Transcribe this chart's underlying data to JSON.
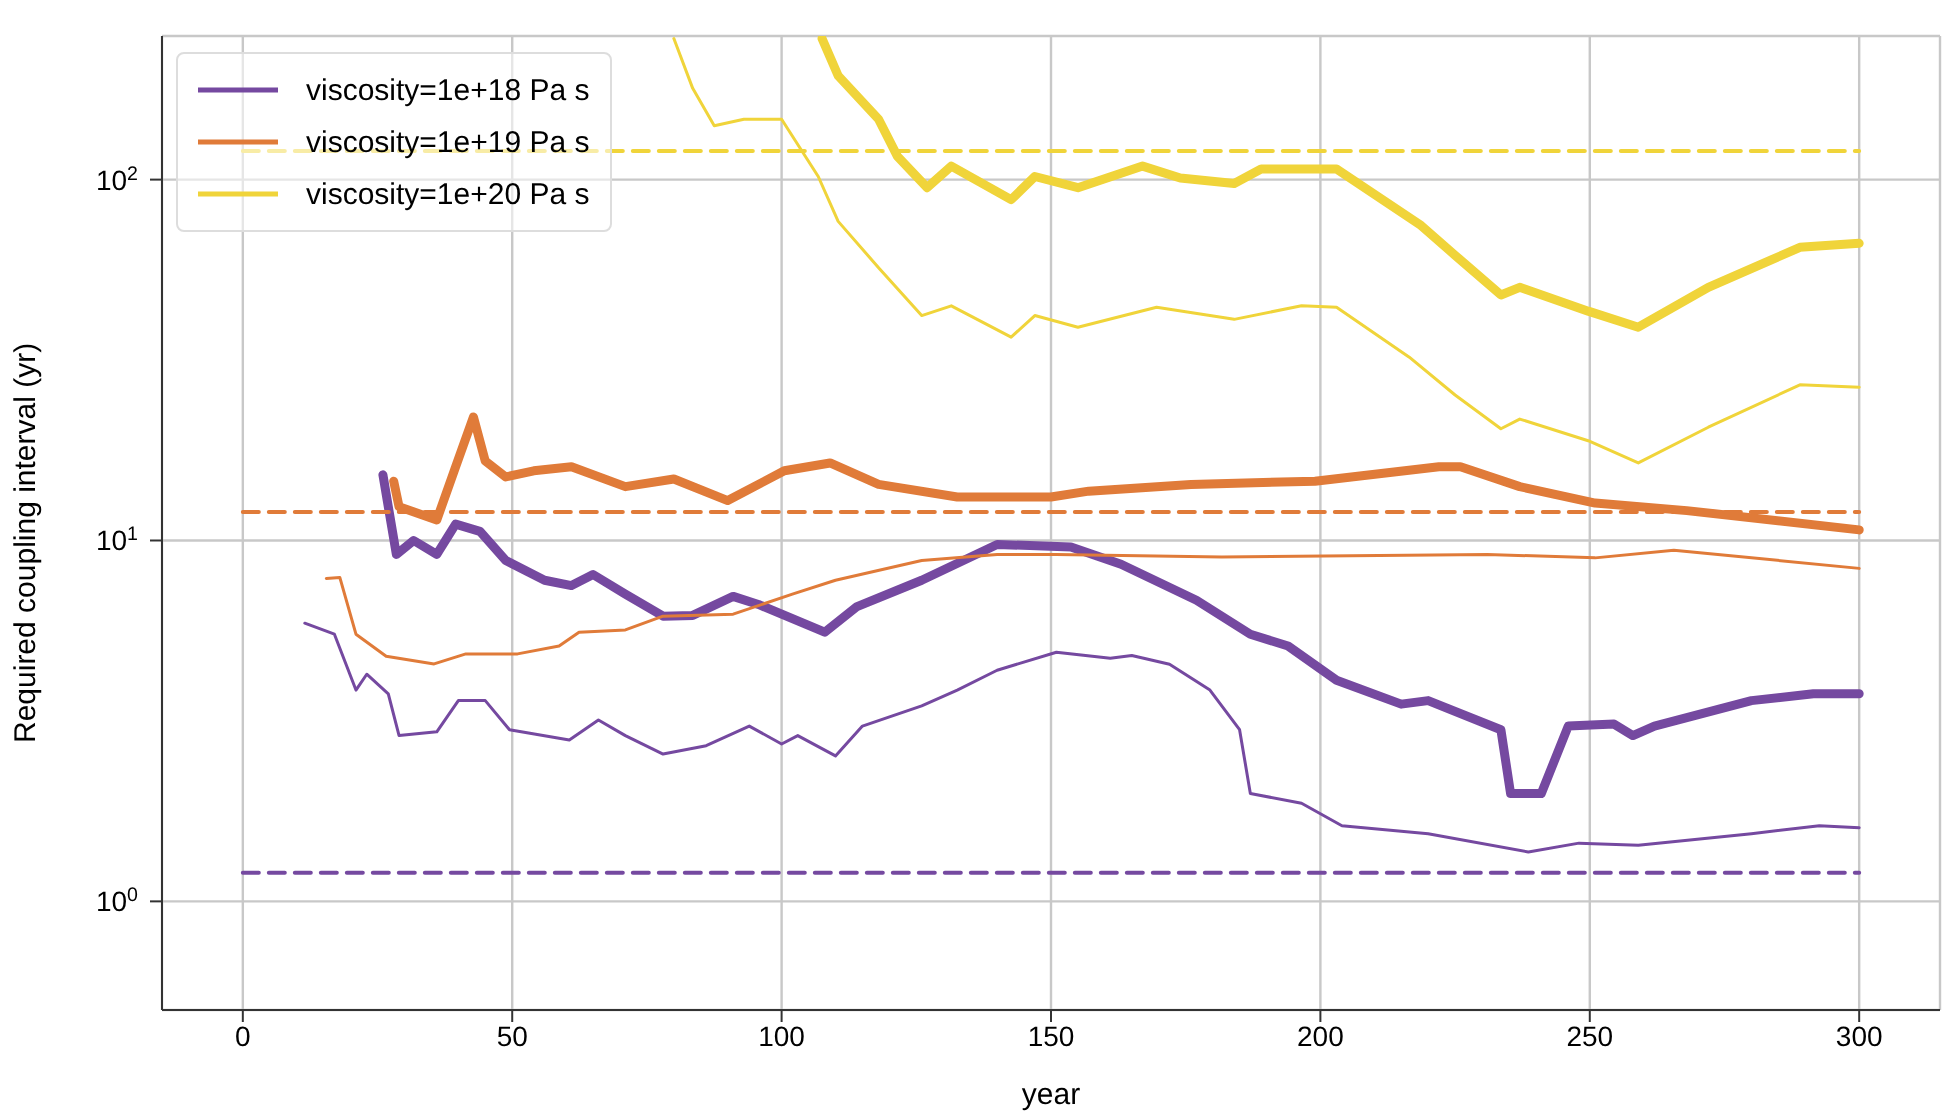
{
  "chart_data": {
    "type": "line",
    "xlabel": "year",
    "ylabel": "Required coupling interval (yr)",
    "log": "y",
    "grid": true,
    "legend": "top left",
    "xlim": [
      -15,
      315
    ],
    "xticks": [
      0,
      50,
      100,
      150,
      200,
      250,
      300
    ],
    "ylim": [
      0.5,
      250
    ],
    "yticks": [
      {
        "value": 1,
        "label": "10$^{0}$"
      },
      {
        "value": 10,
        "label": "10$^{1}$"
      },
      {
        "value": 100,
        "label": "10$^{2}$"
      }
    ],
    "series": [
      {
        "name": "viscosity=1e+18 Pa s",
        "color": "#7549a0",
        "x": [
          11.5,
          17,
          21,
          23,
          27,
          29,
          36,
          40,
          45,
          49.5,
          60.6,
          66,
          71,
          78,
          86,
          94,
          100,
          103,
          110,
          115,
          126,
          132.6,
          140,
          151,
          161,
          165,
          172,
          179.5,
          185,
          187,
          196.5,
          204,
          220,
          238.6,
          248,
          259,
          280,
          292.6,
          300
        ],
        "values": [
          5.9,
          5.5,
          3.85,
          4.26,
          3.76,
          2.88,
          2.95,
          3.6,
          3.6,
          2.99,
          2.8,
          3.18,
          2.88,
          2.56,
          2.7,
          3.06,
          2.73,
          2.88,
          2.53,
          3.06,
          3.48,
          3.85,
          4.37,
          4.9,
          4.72,
          4.8,
          4.54,
          3.85,
          2.99,
          1.99,
          1.87,
          1.62,
          1.54,
          1.37,
          1.45,
          1.43,
          1.54,
          1.62,
          1.6
        ]
      },
      {
        "color": "#7549a0",
        "x": [
          26,
          28.5,
          31.7,
          36,
          39.5,
          44,
          48.8,
          56,
          61,
          65,
          71,
          78,
          83.5,
          91,
          95.7,
          108,
          114,
          126,
          140,
          153.7,
          163,
          177,
          187,
          194,
          203,
          215,
          220,
          233.5,
          235.3,
          241,
          246,
          254.5,
          258,
          262,
          280,
          291.5,
          300
        ],
        "values": [
          15.2,
          9.15,
          10,
          9.15,
          11.1,
          10.6,
          8.8,
          7.76,
          7.5,
          8.05,
          7.1,
          6.17,
          6.2,
          7,
          6.65,
          5.57,
          6.56,
          7.76,
          9.75,
          9.6,
          8.59,
          6.83,
          5.5,
          5.1,
          4.1,
          3.52,
          3.6,
          2.99,
          1.99,
          1.99,
          3.06,
          3.1,
          2.88,
          3.06,
          3.6,
          3.76,
          3.76
        ]
      },
      {
        "name": "viscosity=1e+19 Pa s",
        "color": "#e07b39",
        "x": [
          15.5,
          18,
          21,
          26.6,
          35.5,
          41.4,
          51,
          58.7,
          62.4,
          71,
          78,
          91,
          102,
          110,
          126,
          140,
          151,
          181.7,
          231,
          251,
          265.6,
          300
        ],
        "values": [
          7.85,
          7.9,
          5.5,
          4.78,
          4.55,
          4.85,
          4.85,
          5.1,
          5.57,
          5.65,
          6.17,
          6.25,
          7.1,
          7.76,
          8.8,
          9.15,
          9.15,
          9,
          9.15,
          8.95,
          9.4,
          8.37
        ]
      },
      {
        "color": "#e07b39",
        "x": [
          28,
          29,
          36,
          39.5,
          42.8,
          45,
          48.8,
          54,
          61,
          71,
          80,
          90,
          100.5,
          109,
          118,
          132.6,
          150,
          157,
          176,
          199,
          222,
          226,
          237,
          251,
          268,
          300
        ],
        "values": [
          14.6,
          12.4,
          11.4,
          16,
          22,
          16.6,
          15,
          15.6,
          16,
          14.1,
          14.8,
          12.9,
          15.6,
          16.4,
          14.3,
          13.2,
          13.2,
          13.7,
          14.3,
          14.6,
          16,
          16,
          14.1,
          12.7,
          12.1,
          10.7
        ]
      },
      {
        "name": "viscosity=1e+20 Pa s",
        "color": "#f0d43a",
        "x": [
          80,
          83.5,
          87.5,
          93,
          100,
          106.8,
          110.5,
          118,
          126,
          131.5,
          142.6,
          147,
          155,
          169.6,
          184,
          196.5,
          203,
          216.5,
          225,
          233.5,
          237,
          249.7,
          259,
          272,
          289,
          300
        ],
        "values": [
          246,
          179,
          141,
          147,
          147,
          102,
          76.6,
          57,
          42,
          44.7,
          36.6,
          42,
          39,
          44.3,
          41,
          44.7,
          44.3,
          32.2,
          25.3,
          20.4,
          21.7,
          18.9,
          16.4,
          20.6,
          27,
          26.6
        ]
      },
      {
        "color": "#f0d43a",
        "x": [
          107.5,
          110.5,
          118,
          121.5,
          127,
          131.5,
          142.6,
          147,
          155,
          167,
          174,
          184,
          189,
          203,
          218.7,
          225,
          233.5,
          237,
          249.7,
          259,
          272,
          289,
          300
        ],
        "values": [
          246,
          194,
          147,
          116,
          95,
          109,
          88,
          102,
          95,
          109,
          101,
          97.6,
          107,
          107,
          74.6,
          61.7,
          47.9,
          50.3,
          43.2,
          39,
          50.3,
          64.9,
          66.6
        ]
      },
      {
        "color": "#7549a0",
        "line_style": "dashed",
        "x": [
          0,
          300
        ],
        "values": [
          1.2,
          1.2
        ]
      },
      {
        "color": "#e07b39",
        "line_style": "dashed",
        "x": [
          0,
          300
        ],
        "values": [
          12,
          12
        ]
      },
      {
        "color": "#f0d43a",
        "line_style": "dashed",
        "x": [
          0,
          300
        ],
        "values": [
          120,
          120
        ]
      }
    ]
  }
}
